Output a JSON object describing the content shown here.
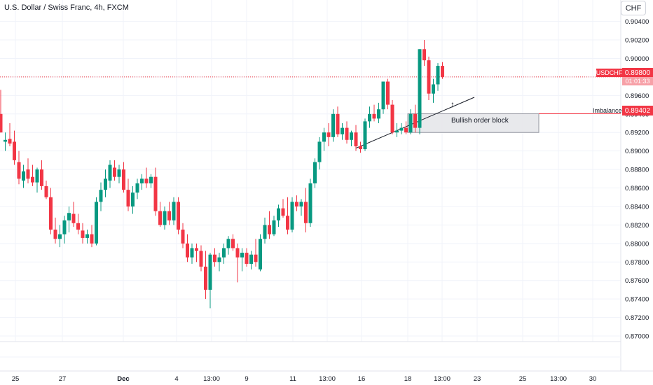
{
  "header": {
    "title": "U.S. Dollar / Swiss Franc, 4h, FXCM",
    "currency_button": "CHF"
  },
  "price_scale": {
    "ticks": [
      "0.90400",
      "0.90200",
      "0.90000",
      "0.89800",
      "0.89600",
      "0.89400",
      "0.89200",
      "0.89000",
      "0.88800",
      "0.88600",
      "0.88400",
      "0.88200",
      "0.88000",
      "0.87800",
      "0.87600",
      "0.87400",
      "0.87200",
      "0.87000"
    ],
    "current_price": "0.89800",
    "symbol_tag": "USDCHF",
    "countdown": "01:01:33",
    "imbalance_price": "0.89402"
  },
  "time_axis": {
    "labels": [
      "25",
      "27",
      "Dec",
      "4",
      "13:00",
      "9",
      "11",
      "13:00",
      "16",
      "18",
      "13:00",
      "23",
      "25",
      "13:00",
      "30"
    ]
  },
  "annotations": {
    "imbalance_label": "Imbalance",
    "order_block_label": "Bullish order block",
    "arrow": "↑"
  },
  "colors": {
    "up": "#089981",
    "down": "#f23645",
    "grid": "#f0f3fa",
    "text": "#131722",
    "box_fill": "#e6e7ea",
    "box_border": "#9598a1"
  },
  "chart_data": {
    "type": "candlestick",
    "title": "U.S. Dollar / Swiss Franc, 4h, FXCM",
    "ylim": [
      0.8697,
      0.9045
    ],
    "candles": [
      {
        "o": 0.894,
        "h": 0.8966,
        "l": 0.892,
        "c": 0.892
      },
      {
        "o": 0.891,
        "h": 0.892,
        "l": 0.89,
        "c": 0.8912
      },
      {
        "o": 0.8913,
        "h": 0.893,
        "l": 0.8905,
        "c": 0.8908
      },
      {
        "o": 0.891,
        "h": 0.8922,
        "l": 0.8885,
        "c": 0.889
      },
      {
        "o": 0.8888,
        "h": 0.89,
        "l": 0.8864,
        "c": 0.887
      },
      {
        "o": 0.8868,
        "h": 0.8885,
        "l": 0.886,
        "c": 0.8878
      },
      {
        "o": 0.888,
        "h": 0.8892,
        "l": 0.8865,
        "c": 0.887
      },
      {
        "o": 0.8872,
        "h": 0.8885,
        "l": 0.8862,
        "c": 0.8866
      },
      {
        "o": 0.8866,
        "h": 0.8882,
        "l": 0.8855,
        "c": 0.888
      },
      {
        "o": 0.888,
        "h": 0.889,
        "l": 0.8858,
        "c": 0.8862
      },
      {
        "o": 0.8862,
        "h": 0.8868,
        "l": 0.8848,
        "c": 0.885
      },
      {
        "o": 0.885,
        "h": 0.886,
        "l": 0.881,
        "c": 0.8815
      },
      {
        "o": 0.8815,
        "h": 0.8828,
        "l": 0.88,
        "c": 0.8805
      },
      {
        "o": 0.8805,
        "h": 0.882,
        "l": 0.8796,
        "c": 0.881
      },
      {
        "o": 0.881,
        "h": 0.883,
        "l": 0.88,
        "c": 0.8825
      },
      {
        "o": 0.8825,
        "h": 0.884,
        "l": 0.8812,
        "c": 0.8833
      },
      {
        "o": 0.8832,
        "h": 0.8845,
        "l": 0.8818,
        "c": 0.8822
      },
      {
        "o": 0.8822,
        "h": 0.8832,
        "l": 0.881,
        "c": 0.8815
      },
      {
        "o": 0.8814,
        "h": 0.8822,
        "l": 0.88,
        "c": 0.8806
      },
      {
        "o": 0.8806,
        "h": 0.8815,
        "l": 0.88,
        "c": 0.881
      },
      {
        "o": 0.881,
        "h": 0.882,
        "l": 0.8796,
        "c": 0.88
      },
      {
        "o": 0.88,
        "h": 0.885,
        "l": 0.8798,
        "c": 0.8845
      },
      {
        "o": 0.8845,
        "h": 0.8866,
        "l": 0.8835,
        "c": 0.8858
      },
      {
        "o": 0.8858,
        "h": 0.888,
        "l": 0.885,
        "c": 0.887
      },
      {
        "o": 0.8868,
        "h": 0.889,
        "l": 0.886,
        "c": 0.8885
      },
      {
        "o": 0.8882,
        "h": 0.889,
        "l": 0.8868,
        "c": 0.8872
      },
      {
        "o": 0.8872,
        "h": 0.8885,
        "l": 0.8865,
        "c": 0.888
      },
      {
        "o": 0.888,
        "h": 0.8888,
        "l": 0.8855,
        "c": 0.8858
      },
      {
        "o": 0.8858,
        "h": 0.887,
        "l": 0.8835,
        "c": 0.884
      },
      {
        "o": 0.884,
        "h": 0.8862,
        "l": 0.8832,
        "c": 0.8855
      },
      {
        "o": 0.8855,
        "h": 0.887,
        "l": 0.8848,
        "c": 0.8865
      },
      {
        "o": 0.8865,
        "h": 0.8875,
        "l": 0.8858,
        "c": 0.887
      },
      {
        "o": 0.887,
        "h": 0.8882,
        "l": 0.886,
        "c": 0.8865
      },
      {
        "o": 0.8865,
        "h": 0.8875,
        "l": 0.886,
        "c": 0.8872
      },
      {
        "o": 0.8872,
        "h": 0.8882,
        "l": 0.883,
        "c": 0.8835
      },
      {
        "o": 0.8835,
        "h": 0.8845,
        "l": 0.8818,
        "c": 0.882
      },
      {
        "o": 0.882,
        "h": 0.884,
        "l": 0.8815,
        "c": 0.8835
      },
      {
        "o": 0.8835,
        "h": 0.8845,
        "l": 0.882,
        "c": 0.8825
      },
      {
        "o": 0.8825,
        "h": 0.885,
        "l": 0.882,
        "c": 0.8845
      },
      {
        "o": 0.8845,
        "h": 0.885,
        "l": 0.881,
        "c": 0.8815
      },
      {
        "o": 0.8815,
        "h": 0.8822,
        "l": 0.8795,
        "c": 0.88
      },
      {
        "o": 0.88,
        "h": 0.881,
        "l": 0.878,
        "c": 0.8785
      },
      {
        "o": 0.8785,
        "h": 0.88,
        "l": 0.8778,
        "c": 0.8795
      },
      {
        "o": 0.8795,
        "h": 0.88,
        "l": 0.878,
        "c": 0.8792
      },
      {
        "o": 0.8792,
        "h": 0.8798,
        "l": 0.877,
        "c": 0.8775
      },
      {
        "o": 0.8775,
        "h": 0.8792,
        "l": 0.874,
        "c": 0.875
      },
      {
        "o": 0.875,
        "h": 0.879,
        "l": 0.873,
        "c": 0.8788
      },
      {
        "o": 0.8788,
        "h": 0.8795,
        "l": 0.8775,
        "c": 0.878
      },
      {
        "o": 0.878,
        "h": 0.879,
        "l": 0.877,
        "c": 0.8785
      },
      {
        "o": 0.8785,
        "h": 0.88,
        "l": 0.8778,
        "c": 0.8795
      },
      {
        "o": 0.8795,
        "h": 0.8808,
        "l": 0.8788,
        "c": 0.8805
      },
      {
        "o": 0.8805,
        "h": 0.881,
        "l": 0.8792,
        "c": 0.8795
      },
      {
        "o": 0.8795,
        "h": 0.88,
        "l": 0.8758,
        "c": 0.8785
      },
      {
        "o": 0.8785,
        "h": 0.8795,
        "l": 0.877,
        "c": 0.879
      },
      {
        "o": 0.879,
        "h": 0.8795,
        "l": 0.8775,
        "c": 0.8778
      },
      {
        "o": 0.8778,
        "h": 0.8792,
        "l": 0.8772,
        "c": 0.8788
      },
      {
        "o": 0.8788,
        "h": 0.8805,
        "l": 0.8775,
        "c": 0.878
      },
      {
        "o": 0.8772,
        "h": 0.881,
        "l": 0.877,
        "c": 0.8805
      },
      {
        "o": 0.8805,
        "h": 0.8828,
        "l": 0.88,
        "c": 0.882
      },
      {
        "o": 0.882,
        "h": 0.8835,
        "l": 0.8805,
        "c": 0.881
      },
      {
        "o": 0.881,
        "h": 0.883,
        "l": 0.8808,
        "c": 0.8825
      },
      {
        "o": 0.8825,
        "h": 0.8842,
        "l": 0.8818,
        "c": 0.8838
      },
      {
        "o": 0.8838,
        "h": 0.8848,
        "l": 0.8828,
        "c": 0.883
      },
      {
        "o": 0.883,
        "h": 0.885,
        "l": 0.881,
        "c": 0.8815
      },
      {
        "o": 0.8815,
        "h": 0.885,
        "l": 0.8812,
        "c": 0.8845
      },
      {
        "o": 0.8845,
        "h": 0.8852,
        "l": 0.8835,
        "c": 0.884
      },
      {
        "o": 0.884,
        "h": 0.8848,
        "l": 0.883,
        "c": 0.8845
      },
      {
        "o": 0.8845,
        "h": 0.886,
        "l": 0.8812,
        "c": 0.8822
      },
      {
        "o": 0.8822,
        "h": 0.887,
        "l": 0.8818,
        "c": 0.8865
      },
      {
        "o": 0.8865,
        "h": 0.8892,
        "l": 0.886,
        "c": 0.8888
      },
      {
        "o": 0.8888,
        "h": 0.8915,
        "l": 0.888,
        "c": 0.891
      },
      {
        "o": 0.891,
        "h": 0.8925,
        "l": 0.89,
        "c": 0.892
      },
      {
        "o": 0.892,
        "h": 0.893,
        "l": 0.8905,
        "c": 0.8915
      },
      {
        "o": 0.8915,
        "h": 0.8945,
        "l": 0.891,
        "c": 0.894
      },
      {
        "o": 0.894,
        "h": 0.8948,
        "l": 0.8915,
        "c": 0.8918
      },
      {
        "o": 0.8918,
        "h": 0.893,
        "l": 0.8912,
        "c": 0.8925
      },
      {
        "o": 0.8925,
        "h": 0.8932,
        "l": 0.8908,
        "c": 0.8912
      },
      {
        "o": 0.8912,
        "h": 0.8922,
        "l": 0.8905,
        "c": 0.892
      },
      {
        "o": 0.892,
        "h": 0.8928,
        "l": 0.89,
        "c": 0.8905
      },
      {
        "o": 0.8905,
        "h": 0.891,
        "l": 0.8898,
        "c": 0.8902
      },
      {
        "o": 0.8902,
        "h": 0.8935,
        "l": 0.89,
        "c": 0.8932
      },
      {
        "o": 0.8932,
        "h": 0.8948,
        "l": 0.8925,
        "c": 0.894
      },
      {
        "o": 0.894,
        "h": 0.895,
        "l": 0.8932,
        "c": 0.8935
      },
      {
        "o": 0.8935,
        "h": 0.8952,
        "l": 0.893,
        "c": 0.8945
      },
      {
        "o": 0.8945,
        "h": 0.8975,
        "l": 0.894,
        "c": 0.8975
      },
      {
        "o": 0.8975,
        "h": 0.8978,
        "l": 0.8945,
        "c": 0.895
      },
      {
        "o": 0.895,
        "h": 0.8955,
        "l": 0.8918,
        "c": 0.892
      },
      {
        "o": 0.892,
        "h": 0.893,
        "l": 0.8915,
        "c": 0.8922
      },
      {
        "o": 0.8922,
        "h": 0.893,
        "l": 0.8918,
        "c": 0.8925
      },
      {
        "o": 0.8925,
        "h": 0.8932,
        "l": 0.8918,
        "c": 0.892
      },
      {
        "o": 0.892,
        "h": 0.8945,
        "l": 0.8918,
        "c": 0.894
      },
      {
        "o": 0.894,
        "h": 0.895,
        "l": 0.892,
        "c": 0.8925
      },
      {
        "o": 0.8925,
        "h": 0.901,
        "l": 0.8918,
        "c": 0.901
      },
      {
        "o": 0.901,
        "h": 0.902,
        "l": 0.8992,
        "c": 0.8998
      },
      {
        "o": 0.8998,
        "h": 0.9002,
        "l": 0.8955,
        "c": 0.8962
      },
      {
        "o": 0.8962,
        "h": 0.8978,
        "l": 0.8952,
        "c": 0.8972
      },
      {
        "o": 0.8972,
        "h": 0.8995,
        "l": 0.8965,
        "c": 0.8992
      },
      {
        "o": 0.8992,
        "h": 0.8996,
        "l": 0.8978,
        "c": 0.898
      }
    ],
    "current_price": 0.898,
    "imbalance_level": 0.89402,
    "order_block": {
      "start_index": 90,
      "top": 0.89402,
      "bottom": 0.892,
      "label": "Bullish order block"
    },
    "trendline": {
      "start_index": 78,
      "start_price": 0.8903,
      "end_index": 104,
      "end_price": 0.8958
    }
  }
}
